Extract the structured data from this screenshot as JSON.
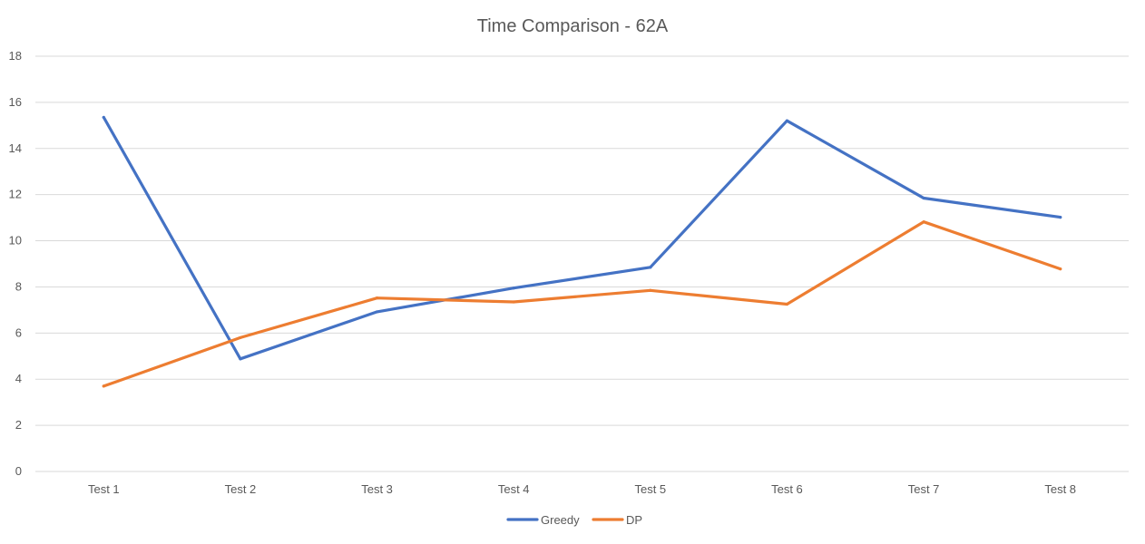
{
  "chart_data": {
    "type": "line",
    "title": "Time Comparison - 62A",
    "categories": [
      "Test 1",
      "Test 2",
      "Test 3",
      "Test 4",
      "Test 5",
      "Test 6",
      "Test 7",
      "Test 8"
    ],
    "ylim": [
      0,
      18
    ],
    "yticks": [
      "0",
      "2",
      "4",
      "6",
      "8",
      "10",
      "12",
      "14",
      "16",
      "18"
    ],
    "grid": true,
    "legend_position": "bottom",
    "series": [
      {
        "name": "Greedy",
        "color": "#4472C4",
        "values": [
          15.35,
          4.88,
          6.92,
          7.95,
          8.85,
          15.2,
          11.85,
          11.02
        ]
      },
      {
        "name": "DP",
        "color": "#ED7D31",
        "values": [
          3.7,
          5.8,
          7.52,
          7.35,
          7.85,
          7.25,
          10.82,
          8.78
        ]
      }
    ]
  }
}
